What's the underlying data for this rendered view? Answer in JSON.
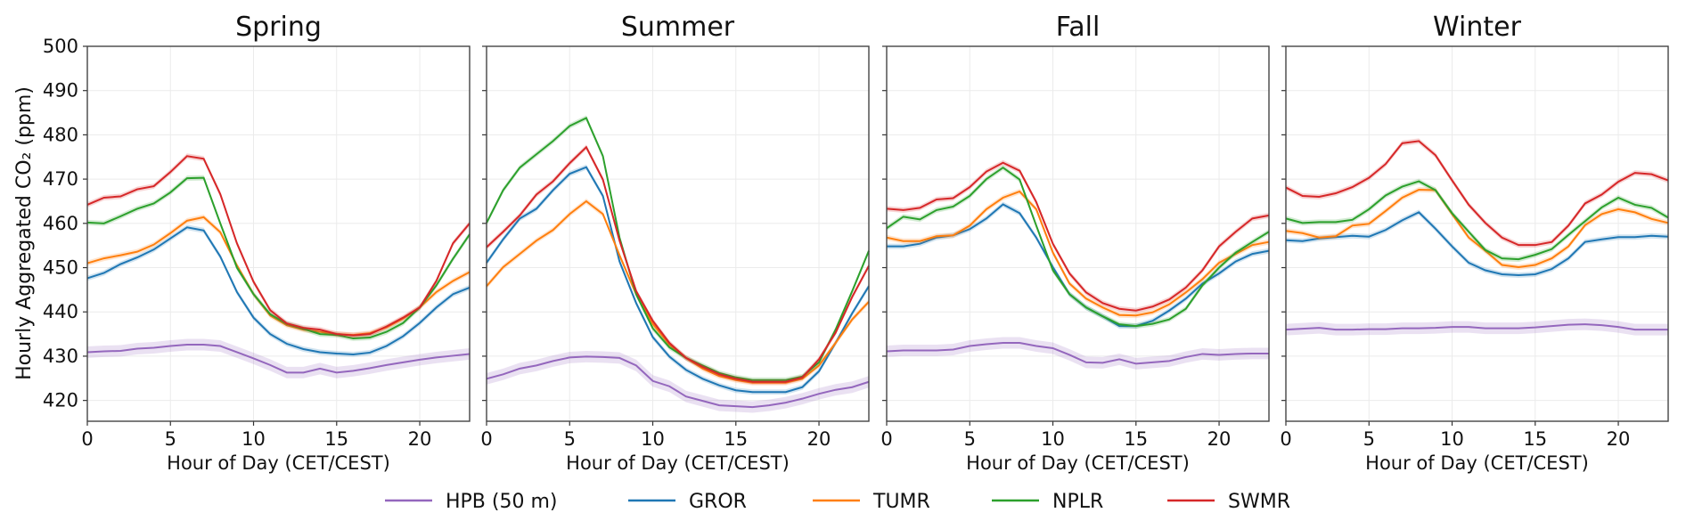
{
  "chart_data": {
    "type": "line",
    "ylabel": "Hourly Aggregated CO₂ (ppm)",
    "xlabel": "Hour of Day (CET/CEST)",
    "ylim": [
      415.3,
      500
    ],
    "xlim": [
      0,
      23
    ],
    "yticks": [
      420,
      430,
      440,
      450,
      460,
      470,
      480,
      490,
      500
    ],
    "xticks": [
      0,
      5,
      10,
      15,
      20
    ],
    "grid": true,
    "legend_placement": "bottom-center",
    "x": [
      0,
      1,
      2,
      3,
      4,
      5,
      6,
      7,
      8,
      9,
      10,
      11,
      12,
      13,
      14,
      15,
      16,
      17,
      18,
      19,
      20,
      21,
      22,
      23
    ],
    "series_meta": [
      {
        "name": "HPB (50 m)",
        "color": "#9467bd"
      },
      {
        "name": "GROR",
        "color": "#1f77b4"
      },
      {
        "name": "TUMR",
        "color": "#ff7f0e"
      },
      {
        "name": "NPLR",
        "color": "#2ca02c"
      },
      {
        "name": "SWMR",
        "color": "#d62728"
      }
    ],
    "panels": [
      {
        "title": "Spring",
        "series": [
          {
            "name": "HPB (50 m)",
            "values": [
              430.9,
              431.1,
              431.2,
              431.7,
              431.9,
              432.3,
              432.6,
              432.6,
              432.3,
              430.9,
              429.5,
              428,
              426.3,
              426.3,
              427.2,
              426.3,
              426.7,
              427.3,
              428,
              428.6,
              429.2,
              429.7,
              430.1,
              430.5
            ]
          },
          {
            "name": "GROR",
            "values": [
              447.6,
              448.8,
              450.8,
              452.3,
              454.1,
              456.6,
              459.1,
              458.4,
              452.5,
              444.5,
              438.7,
              435,
              432.8,
              431.6,
              430.9,
              430.6,
              430.4,
              430.8,
              432.3,
              434.5,
              437.5,
              441,
              444,
              445.5
            ]
          },
          {
            "name": "TUMR",
            "values": [
              451,
              452.1,
              452.8,
              453.6,
              455.2,
              457.8,
              460.6,
              461.4,
              458,
              450.5,
              444,
              439.2,
              437,
              436,
              435.5,
              435,
              434.8,
              435.2,
              436.5,
              438.5,
              441,
              444.5,
              447,
              449
            ]
          },
          {
            "name": "NPLR",
            "values": [
              460.2,
              460,
              461.6,
              463.3,
              464.5,
              467,
              470.2,
              470.3,
              460,
              450,
              444,
              439.5,
              437.3,
              436.2,
              435,
              434.8,
              434,
              434.2,
              435.5,
              437.5,
              441,
              446,
              452,
              457.5
            ]
          },
          {
            "name": "SWMR",
            "values": [
              464.2,
              465.8,
              466.1,
              467.7,
              468.4,
              471.6,
              475.2,
              474.6,
              466.6,
              455.5,
              446.8,
              440.4,
              437.4,
              436.4,
              436,
              435,
              434.7,
              435,
              436.7,
              438.7,
              441,
              447,
              455.5,
              460
            ]
          }
        ]
      },
      {
        "title": "Summer",
        "series": [
          {
            "name": "HPB (50 m)",
            "values": [
              424.9,
              425.9,
              427.2,
              427.9,
              428.9,
              429.7,
              429.9,
              429.8,
              429.6,
              427.9,
              424.4,
              423.2,
              420.9,
              419.9,
              418.9,
              418.7,
              418.5,
              418.9,
              419.5,
              420.4,
              421.5,
              422.4,
              423,
              424.2
            ]
          },
          {
            "name": "GROR",
            "values": [
              451.1,
              456.4,
              461.1,
              463.3,
              467.5,
              471.2,
              472.7,
              466.2,
              451.4,
              442,
              434.3,
              429.9,
              426.9,
              424.9,
              423.4,
              422.3,
              421.9,
              421.9,
              421.9,
              423,
              426.6,
              433,
              439.7,
              445.8
            ]
          },
          {
            "name": "TUMR",
            "values": [
              445.8,
              450.1,
              453.1,
              456.1,
              458.5,
              462.1,
              465,
              462.1,
              452.8,
              444,
              437.3,
              432.6,
              429.6,
              427.2,
              425.5,
              424.6,
              424,
              424,
              424,
              424.9,
              427.9,
              433,
              438.3,
              442.3
            ]
          },
          {
            "name": "NPLR",
            "values": [
              460.1,
              467.5,
              472.6,
              475.6,
              478.6,
              482,
              483.8,
              475.2,
              456.8,
              444,
              436.3,
              432,
              429.6,
              427.9,
              426.2,
              425.2,
              424.6,
              424.6,
              424.6,
              425.4,
              428.6,
              436,
              444.7,
              453.8
            ]
          },
          {
            "name": "SWMR",
            "values": [
              454.6,
              458.1,
              461.8,
              466.5,
              469.5,
              473.6,
              477.2,
              469.9,
              456.1,
              444.7,
              438,
              433,
              429.6,
              427.6,
              425.9,
              424.9,
              424.2,
              424.2,
              424.2,
              425.2,
              429.3,
              435.3,
              443.4,
              450.4
            ]
          }
        ]
      },
      {
        "title": "Fall",
        "series": [
          {
            "name": "HPB (50 m)",
            "values": [
              431.1,
              431.3,
              431.3,
              431.3,
              431.5,
              432.3,
              432.7,
              433,
              433,
              432.3,
              431.8,
              430.3,
              428.6,
              428.5,
              429.3,
              428.3,
              428.6,
              428.9,
              429.8,
              430.5,
              430.3,
              430.5,
              430.6,
              430.6
            ]
          },
          {
            "name": "GROR",
            "values": [
              454.8,
              454.8,
              455.4,
              456.8,
              457.3,
              458.7,
              461.1,
              464.3,
              462.3,
              456.8,
              450.1,
              444,
              441,
              439,
              436.8,
              436.8,
              438,
              440.3,
              443,
              446.4,
              448.7,
              451.4,
              453.1,
              453.8
            ]
          },
          {
            "name": "TUMR",
            "values": [
              456.8,
              456,
              456,
              457.1,
              457.3,
              459.5,
              463.2,
              465.8,
              467.2,
              463.2,
              453.4,
              446.4,
              443,
              441,
              439.3,
              439.2,
              439.9,
              441.7,
              444.4,
              447.4,
              451.1,
              453.1,
              455.1,
              455.8
            ]
          },
          {
            "name": "NPLR",
            "values": [
              458.9,
              461.5,
              460.9,
              463,
              463.8,
              466.2,
              470,
              472.6,
              469.9,
              459.5,
              449.4,
              444,
              441,
              439,
              437.2,
              436.8,
              437.3,
              438.3,
              440.7,
              446,
              450,
              453.4,
              455.8,
              458.1
            ]
          },
          {
            "name": "SWMR",
            "values": [
              463.3,
              463,
              463.5,
              465.4,
              465.7,
              468.2,
              471.7,
              473.7,
              471.9,
              464.8,
              455.4,
              448.7,
              444.4,
              442,
              440.7,
              440.3,
              441.2,
              442.8,
              445.5,
              449.4,
              454.8,
              458.1,
              461.1,
              461.8
            ]
          }
        ]
      },
      {
        "title": "Winter",
        "series": [
          {
            "name": "HPB (50 m)",
            "values": [
              436,
              436.2,
              436.4,
              436,
              436,
              436.1,
              436.1,
              436.3,
              436.3,
              436.4,
              436.6,
              436.6,
              436.3,
              436.3,
              436.3,
              436.5,
              436.8,
              437.1,
              437.2,
              437,
              436.6,
              436,
              436,
              436
            ]
          },
          {
            "name": "GROR",
            "values": [
              456.2,
              456,
              456.6,
              456.9,
              457.2,
              457,
              458.5,
              460.7,
              462.5,
              458.8,
              454.8,
              451.1,
              449.4,
              448.5,
              448.3,
              448.5,
              449.7,
              452.1,
              455.8,
              456.4,
              456.9,
              456.9,
              457.2,
              457
            ]
          },
          {
            "name": "TUMR",
            "values": [
              458.3,
              457.8,
              456.8,
              457.1,
              459.5,
              459.9,
              462.8,
              465.8,
              467.6,
              467.5,
              462.1,
              456.8,
              453.8,
              450.6,
              450.1,
              450.6,
              452.1,
              454.8,
              459.6,
              462.1,
              463.2,
              462.5,
              461,
              460.1
            ]
          },
          {
            "name": "NPLR",
            "values": [
              461.1,
              460.1,
              460.3,
              460.3,
              460.8,
              463.2,
              466.3,
              468.3,
              469.5,
              467.5,
              462.3,
              458.1,
              454,
              452.1,
              451.9,
              452.9,
              454.2,
              457.4,
              460.5,
              463.6,
              465.8,
              464.2,
              463.5,
              461.3
            ]
          },
          {
            "name": "SWMR",
            "values": [
              468.1,
              466.2,
              466,
              466.8,
              468.2,
              470.3,
              473.4,
              478.1,
              478.6,
              475.4,
              469.7,
              464.2,
              460.1,
              456.8,
              455.1,
              455.1,
              455.8,
              459.5,
              464.5,
              466.5,
              469.4,
              471.4,
              471.1,
              469.7
            ]
          }
        ]
      }
    ]
  }
}
